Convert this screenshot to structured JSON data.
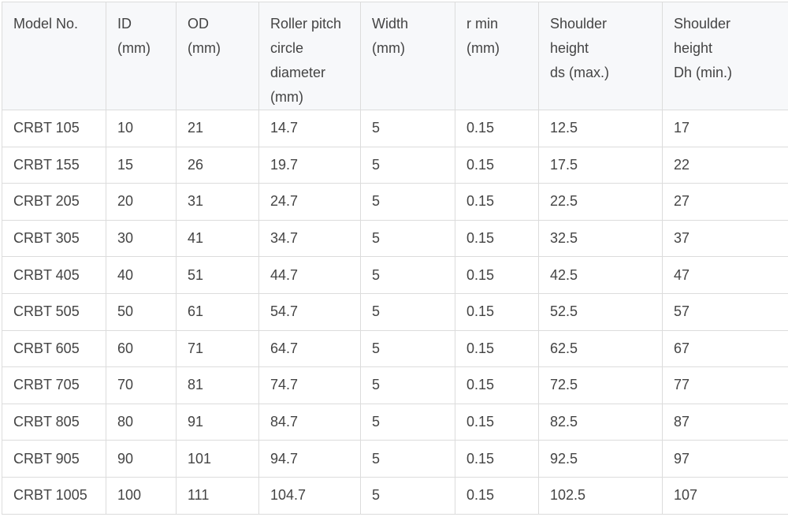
{
  "table": {
    "headers": [
      "Model No.",
      "ID\n(mm)",
      "OD\n(mm)",
      "Roller pitch\ncircle\ndiameter\n(mm)",
      "Width\n(mm)",
      "r min\n(mm)",
      "Shoulder\nheight\nds (max.)",
      "Shoulder\nheight\nDh (min.)"
    ],
    "rows": [
      [
        "CRBT 105",
        "10",
        "21",
        "14.7",
        "5",
        "0.15",
        "12.5",
        "17"
      ],
      [
        "CRBT 155",
        "15",
        "26",
        "19.7",
        "5",
        "0.15",
        "17.5",
        "22"
      ],
      [
        "CRBT 205",
        "20",
        "31",
        "24.7",
        "5",
        "0.15",
        "22.5",
        "27"
      ],
      [
        "CRBT 305",
        "30",
        "41",
        "34.7",
        "5",
        "0.15",
        "32.5",
        "37"
      ],
      [
        "CRBT 405",
        "40",
        "51",
        "44.7",
        "5",
        "0.15",
        "42.5",
        "47"
      ],
      [
        "CRBT 505",
        "50",
        "61",
        "54.7",
        "5",
        "0.15",
        "52.5",
        "57"
      ],
      [
        "CRBT 605",
        "60",
        "71",
        "64.7",
        "5",
        "0.15",
        "62.5",
        "67"
      ],
      [
        "CRBT 705",
        "70",
        "81",
        "74.7",
        "5",
        "0.15",
        "72.5",
        "77"
      ],
      [
        "CRBT 805",
        "80",
        "91",
        "84.7",
        "5",
        "0.15",
        "82.5",
        "87"
      ],
      [
        "CRBT 905",
        "90",
        "101",
        "94.7",
        "5",
        "0.15",
        "92.5",
        "97"
      ],
      [
        "CRBT 1005",
        "100",
        "111",
        "104.7",
        "5",
        "0.15",
        "102.5",
        "107"
      ]
    ]
  }
}
